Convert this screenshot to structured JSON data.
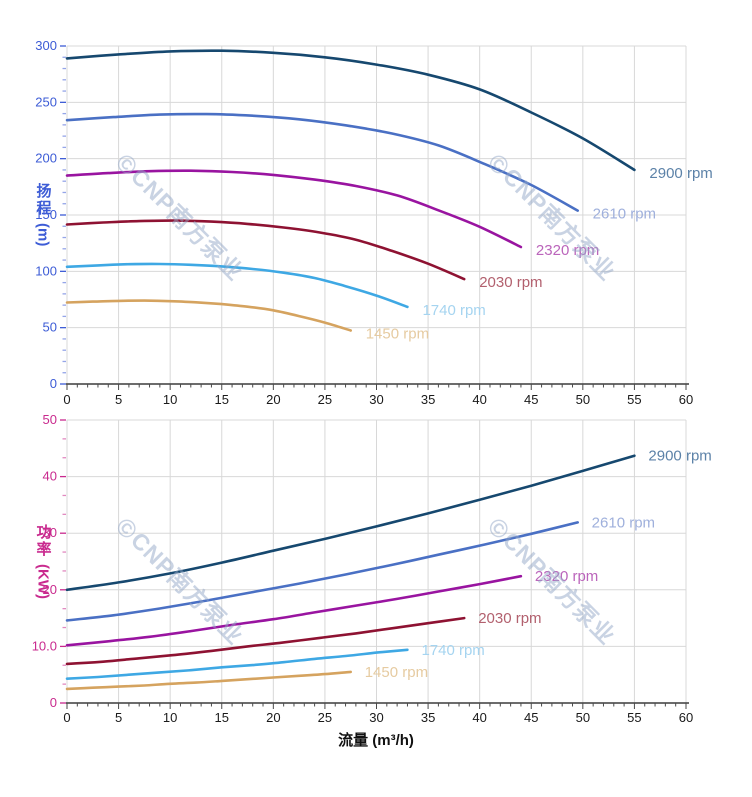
{
  "watermark": {
    "logo_glyph": "©",
    "brand": "CNP",
    "company": "南方泵业",
    "color": "rgba(148,168,200,0.5)"
  },
  "axes": {
    "x_title": "流量 (m³/h)",
    "x_tick_labels": [
      "0",
      "5",
      "10",
      "15",
      "20",
      "25",
      "30",
      "35",
      "40",
      "45",
      "50",
      "55",
      "60"
    ],
    "head_axis": {
      "title_cn": "扬程",
      "title_unit": "(m)",
      "color": "#3d5cd6"
    },
    "power_axis": {
      "title_cn": "功率",
      "title_unit": "(KW)",
      "color": "#c92a8e"
    }
  },
  "chart_data": [
    {
      "type": "line",
      "name": "head-vs-flow",
      "xlabel": "流量 (m³/h)",
      "ylabel": "扬程 (m)",
      "xlim": [
        0,
        60
      ],
      "ylim": [
        0,
        300
      ],
      "x_major_step": 5,
      "y_major_step": 50,
      "grid": true,
      "axis_color": "#3d5cd6",
      "y_tick_labels": [
        "0",
        "50",
        "100",
        "150",
        "200",
        "250",
        "300"
      ],
      "series": [
        {
          "name": "2900 rpm",
          "color": "#16486f",
          "label_color": "#5c82a8",
          "points": [
            [
              0,
              289
            ],
            [
              5,
              292.5
            ],
            [
              10,
              295.2
            ],
            [
              15,
              295.8
            ],
            [
              20,
              294
            ],
            [
              25,
              290
            ],
            [
              30,
              283.5
            ],
            [
              35,
              274.5
            ],
            [
              40,
              261.5
            ],
            [
              45,
              241
            ],
            [
              50,
              218
            ],
            [
              55,
              190
            ]
          ]
        },
        {
          "name": "2610 rpm",
          "color": "#4a70c4",
          "label_color": "#9fb0dc",
          "points": [
            [
              0,
              234.1
            ],
            [
              4.5,
              236.9
            ],
            [
              9,
              239.1
            ],
            [
              13.5,
              239.6
            ],
            [
              18,
              238.1
            ],
            [
              22.5,
              234.9
            ],
            [
              27,
              229.6
            ],
            [
              31.5,
              222.3
            ],
            [
              36,
              211.8
            ],
            [
              40.5,
              195.2
            ],
            [
              45,
              176.6
            ],
            [
              49.5,
              153.9
            ]
          ]
        },
        {
          "name": "2320 rpm",
          "color": "#9914a0",
          "label_color": "#bb65bb",
          "points": [
            [
              0,
              185
            ],
            [
              4,
              187.2
            ],
            [
              8,
              188.9
            ],
            [
              12,
              189.3
            ],
            [
              16,
              188.2
            ],
            [
              20,
              185.6
            ],
            [
              24,
              181.4
            ],
            [
              28,
              175.7
            ],
            [
              32,
              167.4
            ],
            [
              36,
              154.2
            ],
            [
              40,
              139.5
            ],
            [
              44,
              121.6
            ]
          ]
        },
        {
          "name": "2030 rpm",
          "color": "#8e1232",
          "label_color": "#b2606e",
          "points": [
            [
              0,
              141.6
            ],
            [
              3.5,
              143.3
            ],
            [
              7,
              144.6
            ],
            [
              10.5,
              145
            ],
            [
              14,
              144.1
            ],
            [
              17.5,
              142.1
            ],
            [
              21,
              138.9
            ],
            [
              24.5,
              134.5
            ],
            [
              28,
              128.1
            ],
            [
              31.5,
              118.1
            ],
            [
              35,
              106.8
            ],
            [
              38.5,
              93.1
            ]
          ]
        },
        {
          "name": "1740 rpm",
          "color": "#3ea8e4",
          "label_color": "#a5d4f0",
          "points": [
            [
              0,
              104
            ],
            [
              3,
              105.3
            ],
            [
              6,
              106.3
            ],
            [
              9,
              106.5
            ],
            [
              12,
              105.8
            ],
            [
              15,
              104.4
            ],
            [
              18,
              102.1
            ],
            [
              21,
              98.8
            ],
            [
              24,
              94.1
            ],
            [
              27,
              86.8
            ],
            [
              30,
              78.5
            ],
            [
              33,
              68.4
            ]
          ]
        },
        {
          "name": "1450 rpm",
          "color": "#d5a35f",
          "label_color": "#e6cba1",
          "points": [
            [
              0,
              72.3
            ],
            [
              2.5,
              73.1
            ],
            [
              5,
              73.8
            ],
            [
              7.5,
              74
            ],
            [
              10,
              73.5
            ],
            [
              12.5,
              72.5
            ],
            [
              15,
              70.9
            ],
            [
              17.5,
              68.6
            ],
            [
              20,
              65.4
            ],
            [
              22.5,
              60.3
            ],
            [
              25,
              54.5
            ],
            [
              27.5,
              47.5
            ]
          ]
        }
      ]
    },
    {
      "type": "line",
      "name": "power-vs-flow",
      "xlabel": "流量 (m³/h)",
      "ylabel": "功率 (KW)",
      "xlim": [
        0,
        60
      ],
      "ylim": [
        0,
        50
      ],
      "x_major_step": 5,
      "y_major_step": 10,
      "grid": true,
      "axis_color": "#c92a8e",
      "y_tick_labels": [
        "0",
        "10.0",
        "20",
        "30",
        "40",
        "50"
      ],
      "series": [
        {
          "name": "2900 rpm",
          "color": "#16486f",
          "label_color": "#5c82a8",
          "points": [
            [
              0,
              20
            ],
            [
              5,
              21.3
            ],
            [
              10,
              22.9
            ],
            [
              15,
              24.8
            ],
            [
              20,
              26.9
            ],
            [
              25,
              29
            ],
            [
              30,
              31.2
            ],
            [
              35,
              33.5
            ],
            [
              40,
              35.9
            ],
            [
              45,
              38.4
            ],
            [
              50,
              41
            ],
            [
              55,
              43.7
            ]
          ]
        },
        {
          "name": "2610 rpm",
          "color": "#4a70c4",
          "label_color": "#9fb0dc",
          "points": [
            [
              0,
              14.6
            ],
            [
              4.5,
              15.5
            ],
            [
              9,
              16.7
            ],
            [
              13.5,
              18.1
            ],
            [
              18,
              19.6
            ],
            [
              22.5,
              21.1
            ],
            [
              27,
              22.7
            ],
            [
              31.5,
              24.4
            ],
            [
              36,
              26.2
            ],
            [
              40.5,
              28
            ],
            [
              45,
              29.9
            ],
            [
              49.5,
              31.9
            ]
          ]
        },
        {
          "name": "2320 rpm",
          "color": "#9914a0",
          "label_color": "#bb65bb",
          "points": [
            [
              0,
              10.2
            ],
            [
              4,
              10.9
            ],
            [
              8,
              11.7
            ],
            [
              12,
              12.7
            ],
            [
              16,
              13.8
            ],
            [
              20,
              14.8
            ],
            [
              24,
              16
            ],
            [
              28,
              17.2
            ],
            [
              32,
              18.4
            ],
            [
              36,
              19.7
            ],
            [
              40,
              21
            ],
            [
              44,
              22.4
            ]
          ]
        },
        {
          "name": "2030 rpm",
          "color": "#8e1232",
          "label_color": "#b2606e",
          "points": [
            [
              0,
              6.9
            ],
            [
              3.5,
              7.3
            ],
            [
              7,
              7.9
            ],
            [
              10.5,
              8.5
            ],
            [
              14,
              9.2
            ],
            [
              17.5,
              10
            ],
            [
              21,
              10.7
            ],
            [
              24.5,
              11.5
            ],
            [
              28,
              12.3
            ],
            [
              31.5,
              13.2
            ],
            [
              35,
              14.1
            ],
            [
              38.5,
              15
            ]
          ]
        },
        {
          "name": "1740 rpm",
          "color": "#3ea8e4",
          "label_color": "#a5d4f0",
          "points": [
            [
              0,
              4.3
            ],
            [
              3,
              4.6
            ],
            [
              6,
              5
            ],
            [
              9,
              5.4
            ],
            [
              12,
              5.8
            ],
            [
              15,
              6.3
            ],
            [
              18,
              6.7
            ],
            [
              21,
              7.2
            ],
            [
              24,
              7.8
            ],
            [
              27,
              8.3
            ],
            [
              30,
              8.9
            ],
            [
              33,
              9.4
            ]
          ]
        },
        {
          "name": "1450 rpm",
          "color": "#d5a35f",
          "label_color": "#e6cba1",
          "points": [
            [
              0,
              2.5
            ],
            [
              2.5,
              2.7
            ],
            [
              5,
              2.9
            ],
            [
              7.5,
              3.1
            ],
            [
              10,
              3.4
            ],
            [
              12.5,
              3.6
            ],
            [
              15,
              3.9
            ],
            [
              17.5,
              4.2
            ],
            [
              20,
              4.5
            ],
            [
              22.5,
              4.8
            ],
            [
              25,
              5.1
            ],
            [
              27.5,
              5.5
            ]
          ]
        }
      ]
    }
  ]
}
